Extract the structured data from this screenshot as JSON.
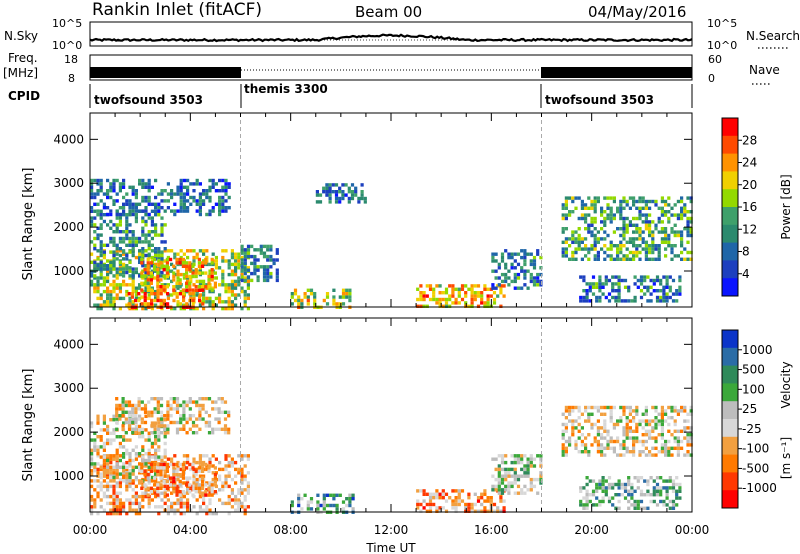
{
  "header": {
    "station": "Rankin Inlet (fitACF)",
    "beam": "Beam 00",
    "date": "04/May/2016"
  },
  "strips": {
    "nsky_label": "N.Sky",
    "nsky_ticks": [
      "10^5",
      "10^0"
    ],
    "nsearch_label": "N.Search",
    "nsearch_ticks": [
      "10^5",
      "10^0"
    ],
    "freq_label": "Freq.",
    "freq_unit": "[MHz]",
    "freq_ticks": [
      "18",
      "8"
    ],
    "nave_label": "Nave",
    "nave_ticks": [
      "60",
      "0"
    ],
    "cpid_label": "CPID",
    "cpid_segments": [
      {
        "name": "twofsound 3503",
        "start": 0,
        "end": 6
      },
      {
        "name": "themis 3300",
        "start": 6,
        "end": 18
      },
      {
        "name": "twofsound 3503",
        "start": 18,
        "end": 24
      }
    ]
  },
  "power_scale": {
    "label": "Power [dB]",
    "ticks": [
      "28",
      "24",
      "20",
      "16",
      "12",
      "8",
      "4"
    ],
    "colors": [
      "#ff0000",
      "#ff4a00",
      "#ff9200",
      "#f0d000",
      "#93d900",
      "#3fa06b",
      "#2b8a6e",
      "#1f66a8",
      "#1c3fbf",
      "#0a14ff"
    ]
  },
  "velocity_scale": {
    "label": "Velocity",
    "unit": "[m s⁻¹]",
    "ticks": [
      "1000",
      "500",
      "100",
      "25",
      "-25",
      "-100",
      "-500",
      "-1000"
    ],
    "colors": [
      "#0b34c9",
      "#2a6ca6",
      "#2f8a5a",
      "#3ba83a",
      "#bdbdbd",
      "#d8d8d8",
      "#f2a040",
      "#ff7a00",
      "#ff3800",
      "#ff0000"
    ]
  },
  "chart_data": {
    "type": "heatmap",
    "xlabel": "Time UT",
    "ylabel": "Slant Range [km]",
    "x_ticks": [
      "00:00",
      "04:00",
      "08:00",
      "12:00",
      "16:00",
      "20:00",
      "00:00"
    ],
    "x_range_hours": [
      0,
      24
    ],
    "y_ticks": [
      1000,
      2000,
      3000,
      4000
    ],
    "y_range_km": [
      180,
      4600
    ],
    "dashed_vertical_lines_hours": [
      6,
      18
    ],
    "panels": [
      {
        "variable": "Power",
        "regions": [
          {
            "t0": 0.0,
            "t1": 6.3,
            "r0": 180,
            "r1": 1500,
            "level": 0.55
          },
          {
            "t0": 0.0,
            "t1": 3.0,
            "r0": 900,
            "r1": 2400,
            "level": 0.35
          },
          {
            "t0": 0.0,
            "t1": 5.5,
            "r0": 2300,
            "r1": 3100,
            "level": 0.25
          },
          {
            "t0": 1.5,
            "t1": 4.5,
            "r0": 180,
            "r1": 600,
            "level": 0.85
          },
          {
            "t0": 2.0,
            "t1": 5.0,
            "r0": 600,
            "r1": 1300,
            "level": 0.7
          },
          {
            "t0": 6.0,
            "t1": 7.5,
            "r0": 800,
            "r1": 1600,
            "level": 0.3
          },
          {
            "t0": 8.0,
            "t1": 10.5,
            "r0": 180,
            "r1": 600,
            "level": 0.6
          },
          {
            "t0": 9.0,
            "t1": 11.0,
            "r0": 2600,
            "r1": 3000,
            "level": 0.25
          },
          {
            "t0": 13.0,
            "t1": 16.5,
            "r0": 180,
            "r1": 700,
            "level": 0.7
          },
          {
            "t0": 16.0,
            "t1": 18.0,
            "r0": 600,
            "r1": 1500,
            "level": 0.3
          },
          {
            "t0": 18.8,
            "t1": 24.0,
            "r0": 1300,
            "r1": 2700,
            "level": 0.4
          },
          {
            "t0": 19.5,
            "t1": 23.5,
            "r0": 350,
            "r1": 900,
            "level": 0.3
          }
        ]
      },
      {
        "variable": "Velocity",
        "regions": [
          {
            "t0": 0.0,
            "t1": 6.3,
            "r0": 180,
            "r1": 1500,
            "level": 0.35
          },
          {
            "t0": 0.0,
            "t1": 3.0,
            "r0": 900,
            "r1": 2400,
            "level": 0.45
          },
          {
            "t0": 1.0,
            "t1": 5.5,
            "r0": 2000,
            "r1": 2800,
            "level": 0.45
          },
          {
            "t0": 2.0,
            "t1": 5.0,
            "r0": 600,
            "r1": 1300,
            "level": 0.3
          },
          {
            "t0": 8.0,
            "t1": 10.5,
            "r0": 180,
            "r1": 600,
            "level": 0.7
          },
          {
            "t0": 13.0,
            "t1": 16.5,
            "r0": 180,
            "r1": 700,
            "level": 0.3
          },
          {
            "t0": 16.0,
            "t1": 18.0,
            "r0": 600,
            "r1": 1500,
            "level": 0.55
          },
          {
            "t0": 18.8,
            "t1": 24.0,
            "r0": 1500,
            "r1": 2600,
            "level": 0.45
          },
          {
            "t0": 19.5,
            "t1": 23.5,
            "r0": 300,
            "r1": 1000,
            "level": 0.65
          }
        ]
      }
    ]
  }
}
